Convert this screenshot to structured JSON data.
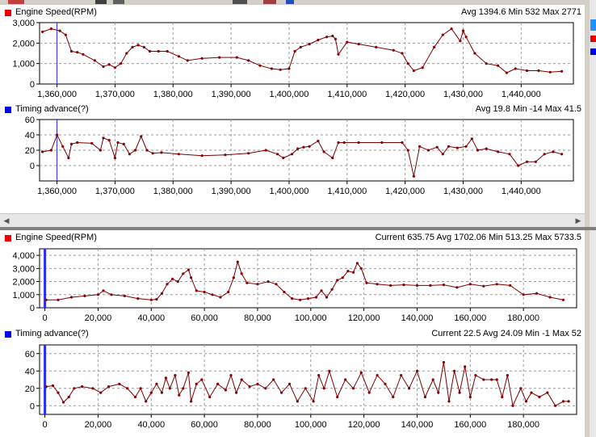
{
  "colors": {
    "series": "#7a0000",
    "marker": "#8b0000",
    "red_legend": "#ee0000",
    "blue_legend": "#0000ee",
    "cursor": "#2b2bff",
    "grid": "#9a9a9a"
  },
  "toolbar": {
    "icons": [
      "export-icon",
      "zoom-icon",
      "hand-icon",
      "ruler-icon",
      "table-icon",
      "globe-icon"
    ]
  },
  "charts": {
    "top_rpm": {
      "title": "Engine Speed(RPM)",
      "stats": "Avg 1394.6 Min 532 Max 2771",
      "legend_color": "#ee0000"
    },
    "top_timing": {
      "title": "Timing advance(?)",
      "stats": "Avg 19.8 Min -14 Max 41.5",
      "legend_color": "#0000ee"
    },
    "bottom_rpm": {
      "title": "Engine Speed(RPM)",
      "stats": "Current 635.75 Avg 1702.06 Min 513.25 Max 5733.5",
      "legend_color": "#ee0000"
    },
    "bottom_timing": {
      "title": "Timing advance(?)",
      "stats": "Current 22.5 Avg 24.09 Min -1 Max 52",
      "legend_color": "#0000ee"
    }
  },
  "chart_data": [
    {
      "type": "line",
      "title": "Engine Speed(RPM)",
      "xlim": [
        1357000,
        1449000
      ],
      "ylim": [
        0,
        3000
      ],
      "xticks": [
        "1,360,000",
        "1,370,000",
        "1,380,000",
        "1,390,000",
        "1,400,000",
        "1,410,000",
        "1,420,000",
        "1,430,000",
        "1,440,000"
      ],
      "xtick_values": [
        1360000,
        1370000,
        1380000,
        1390000,
        1400000,
        1410000,
        1420000,
        1430000,
        1440000
      ],
      "yticks": [
        "0",
        "1,000",
        "2,000",
        "3,000"
      ],
      "ytick_values": [
        0,
        1000,
        2000,
        3000
      ],
      "grid": true,
      "cursor_x": 1360000,
      "series": [
        {
          "x": [
            1357500,
            1359000,
            1360500,
            1361500,
            1362500,
            1363500,
            1364500,
            1366500,
            1368000,
            1369000,
            1370000,
            1371000,
            1372000,
            1373000,
            1374000,
            1375000,
            1376000,
            1377500,
            1379000,
            1381000,
            1382500,
            1385000,
            1388000,
            1391000,
            1393000,
            1395000,
            1397000,
            1398500,
            1400000,
            1401000,
            1402000,
            1403500,
            1405000,
            1406500,
            1407500,
            1408000,
            1408500,
            1410000,
            1412000,
            1415000,
            1418000,
            1419500,
            1420500,
            1421500,
            1423000,
            1425000,
            1426500,
            1428000,
            1429500,
            1430000,
            1430500,
            1432000,
            1434000,
            1436000,
            1437500,
            1439000,
            1441000,
            1443000,
            1445000,
            1447000
          ],
          "y": [
            2550,
            2700,
            2600,
            2400,
            1600,
            1550,
            1450,
            1150,
            850,
            950,
            800,
            1000,
            1500,
            1800,
            1900,
            1800,
            1600,
            1600,
            1600,
            1350,
            1150,
            1250,
            1300,
            1300,
            1150,
            900,
            750,
            700,
            750,
            1600,
            1800,
            1950,
            2150,
            2300,
            2350,
            2200,
            1450,
            2050,
            1950,
            1800,
            1650,
            1500,
            1000,
            650,
            800,
            1800,
            2400,
            2700,
            2100,
            2600,
            2300,
            1500,
            1000,
            900,
            550,
            750,
            650,
            650,
            580,
            620
          ]
        }
      ]
    },
    {
      "type": "line",
      "title": "Timing advance(?)",
      "xlim": [
        1357000,
        1449000
      ],
      "ylim": [
        -20,
        60
      ],
      "xticks": [
        "1,360,000",
        "1,370,000",
        "1,380,000",
        "1,390,000",
        "1,400,000",
        "1,410,000",
        "1,420,000",
        "1,430,000",
        "1,440,000"
      ],
      "xtick_values": [
        1360000,
        1370000,
        1380000,
        1390000,
        1400000,
        1410000,
        1420000,
        1430000,
        1440000
      ],
      "yticks": [
        "0",
        "20",
        "40",
        "60"
      ],
      "ytick_values": [
        0,
        20,
        40,
        60
      ],
      "grid": true,
      "cursor_x": 1360000,
      "series": [
        {
          "x": [
            1357500,
            1359000,
            1360000,
            1361000,
            1362000,
            1362500,
            1363500,
            1366000,
            1367500,
            1368000,
            1369000,
            1370000,
            1370500,
            1371500,
            1372500,
            1373500,
            1374500,
            1375500,
            1376500,
            1378000,
            1381000,
            1385000,
            1389000,
            1393000,
            1396000,
            1398000,
            1399000,
            1400500,
            1401500,
            1402500,
            1403500,
            1405000,
            1406000,
            1407500,
            1408500,
            1409500,
            1412000,
            1416000,
            1419500,
            1420500,
            1421500,
            1422500,
            1424000,
            1425500,
            1426500,
            1427500,
            1429000,
            1430500,
            1431500,
            1432500,
            1434000,
            1436000,
            1438000,
            1439500,
            1441000,
            1442500,
            1444000,
            1445500,
            1447000
          ],
          "y": [
            18,
            20,
            40,
            25,
            10,
            28,
            30,
            29,
            20,
            36,
            33,
            10,
            30,
            28,
            15,
            20,
            38,
            20,
            16,
            17,
            15,
            13,
            14,
            16,
            20,
            15,
            10,
            15,
            22,
            24,
            25,
            32,
            18,
            10,
            30,
            30,
            30,
            30,
            30,
            20,
            -14,
            25,
            20,
            24,
            15,
            25,
            23,
            25,
            35,
            20,
            22,
            18,
            15,
            0,
            5,
            5,
            15,
            18,
            15
          ]
        }
      ]
    },
    {
      "type": "line",
      "title": "Engine Speed(RPM)",
      "xlim": [
        -2000,
        200000
      ],
      "ylim": [
        0,
        4500
      ],
      "xticks": [
        "0",
        "20,000",
        "40,000",
        "60,000",
        "80,000",
        "100,000",
        "120,000",
        "140,000",
        "160,000",
        "180,000"
      ],
      "xtick_values": [
        0,
        20000,
        40000,
        60000,
        80000,
        100000,
        120000,
        140000,
        160000,
        180000
      ],
      "yticks": [
        "0",
        "1,000",
        "2,000",
        "3,000",
        "4,000"
      ],
      "ytick_values": [
        0,
        1000,
        2000,
        3000,
        4000
      ],
      "grid": true,
      "cursor_x": 0,
      "series": [
        {
          "x": [
            500,
            5000,
            10000,
            15000,
            20000,
            22000,
            25000,
            30000,
            35000,
            40000,
            42000,
            44000,
            46000,
            48000,
            50000,
            52000,
            54000,
            55000,
            57000,
            60000,
            63000,
            66000,
            69000,
            71000,
            72500,
            74000,
            76000,
            80000,
            84000,
            87000,
            90000,
            93000,
            96000,
            99000,
            102000,
            104000,
            106000,
            108000,
            110000,
            112000,
            114000,
            116000,
            117500,
            119000,
            121000,
            125000,
            130000,
            135000,
            140000,
            145000,
            150000,
            155000,
            160000,
            165000,
            170000,
            175000,
            180000,
            185000,
            190000,
            195000
          ],
          "y": [
            600,
            600,
            800,
            900,
            1000,
            1300,
            1000,
            900,
            700,
            600,
            650,
            1100,
            1800,
            2200,
            2000,
            2600,
            2900,
            2300,
            1300,
            1200,
            1000,
            800,
            1200,
            2300,
            3500,
            2600,
            1900,
            1800,
            2000,
            1800,
            1200,
            700,
            600,
            700,
            800,
            1300,
            800,
            1400,
            2100,
            2300,
            2800,
            2700,
            3400,
            3000,
            1900,
            1800,
            1700,
            1750,
            1700,
            1700,
            1750,
            1550,
            1800,
            1650,
            1800,
            1700,
            1000,
            1100,
            800,
            600
          ]
        }
      ]
    },
    {
      "type": "line",
      "title": "Timing advance(?)",
      "xlim": [
        -2000,
        200000
      ],
      "ylim": [
        -10,
        70
      ],
      "xticks": [
        "0",
        "20,000",
        "40,000",
        "60,000",
        "80,000",
        "100,000",
        "120,000",
        "140,000",
        "160,000",
        "180,000"
      ],
      "xtick_values": [
        0,
        20000,
        40000,
        60000,
        80000,
        100000,
        120000,
        140000,
        160000,
        180000
      ],
      "yticks": [
        "0",
        "20",
        "40",
        "60"
      ],
      "ytick_values": [
        0,
        20,
        40,
        60
      ],
      "grid": true,
      "cursor_x": 0,
      "series": [
        {
          "x": [
            500,
            3000,
            5000,
            7000,
            9000,
            11000,
            14000,
            18000,
            21000,
            24000,
            28000,
            31000,
            34000,
            36000,
            38000,
            40000,
            42000,
            44000,
            45500,
            47000,
            49000,
            50500,
            52000,
            54000,
            55000,
            57000,
            59000,
            62000,
            65000,
            68000,
            70000,
            72000,
            74000,
            77000,
            80000,
            83000,
            86000,
            89000,
            92000,
            95000,
            98000,
            101000,
            103000,
            105000,
            107000,
            110000,
            113000,
            116000,
            119000,
            122000,
            125000,
            128000,
            131000,
            134000,
            137000,
            140000,
            143000,
            146000,
            148000,
            150000,
            152000,
            154000,
            156000,
            158000,
            160000,
            162000,
            165000,
            168000,
            170000,
            172000,
            174000,
            176000,
            179000,
            181000,
            183000,
            186000,
            189000,
            192000,
            195000,
            197000
          ],
          "y": [
            22,
            23,
            15,
            4,
            10,
            20,
            22,
            20,
            15,
            22,
            25,
            20,
            10,
            20,
            5,
            15,
            25,
            15,
            32,
            20,
            35,
            12,
            20,
            38,
            5,
            25,
            30,
            10,
            25,
            18,
            35,
            15,
            30,
            22,
            25,
            20,
            30,
            15,
            25,
            5,
            20,
            5,
            35,
            20,
            40,
            10,
            30,
            20,
            38,
            15,
            35,
            25,
            10,
            35,
            20,
            40,
            10,
            30,
            15,
            50,
            5,
            40,
            15,
            45,
            10,
            35,
            30,
            30,
            30,
            10,
            35,
            0,
            20,
            5,
            15,
            10,
            15,
            0,
            5,
            5
          ]
        }
      ]
    }
  ]
}
